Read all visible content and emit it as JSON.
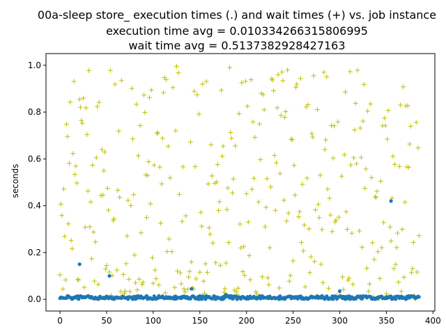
{
  "chart_data": {
    "type": "scatter",
    "title": "00a-sleep store_ execution times (.) and wait times (+) vs. job instance",
    "subtitle_lines": [
      "execution time avg = 0.010334266315806995",
      "wait time avg = 0.5137382928427163"
    ],
    "xlabel": "",
    "ylabel": "seconds",
    "xlim": [
      -15,
      402
    ],
    "ylim": [
      -0.05,
      1.05
    ],
    "xticks": [
      0,
      50,
      100,
      150,
      200,
      250,
      300,
      350,
      400
    ],
    "yticks": [
      0.0,
      0.2,
      0.4,
      0.6,
      0.8,
      1.0
    ],
    "xtick_labels": [
      "0",
      "50",
      "100",
      "150",
      "200",
      "250",
      "300",
      "350",
      "400"
    ],
    "ytick_labels": [
      "0.0",
      "0.2",
      "0.4",
      "0.6",
      "0.8",
      "1.0"
    ],
    "grid": false,
    "legend": "none",
    "job_count": 386,
    "series": [
      {
        "marker": "dot",
        "color": "#1f77b4",
        "baseline_range": [
          0.0,
          0.015
        ],
        "outliers": [
          {
            "x": 21,
            "y": 0.15
          },
          {
            "x": 53,
            "y": 0.1
          },
          {
            "x": 141,
            "y": 0.045
          },
          {
            "x": 178,
            "y": 0.02
          },
          {
            "x": 300,
            "y": 0.035
          },
          {
            "x": 355,
            "y": 0.42
          }
        ]
      },
      {
        "marker": "plus",
        "color": "#bfbf00",
        "range": [
          0.0,
          1.0
        ]
      }
    ]
  }
}
